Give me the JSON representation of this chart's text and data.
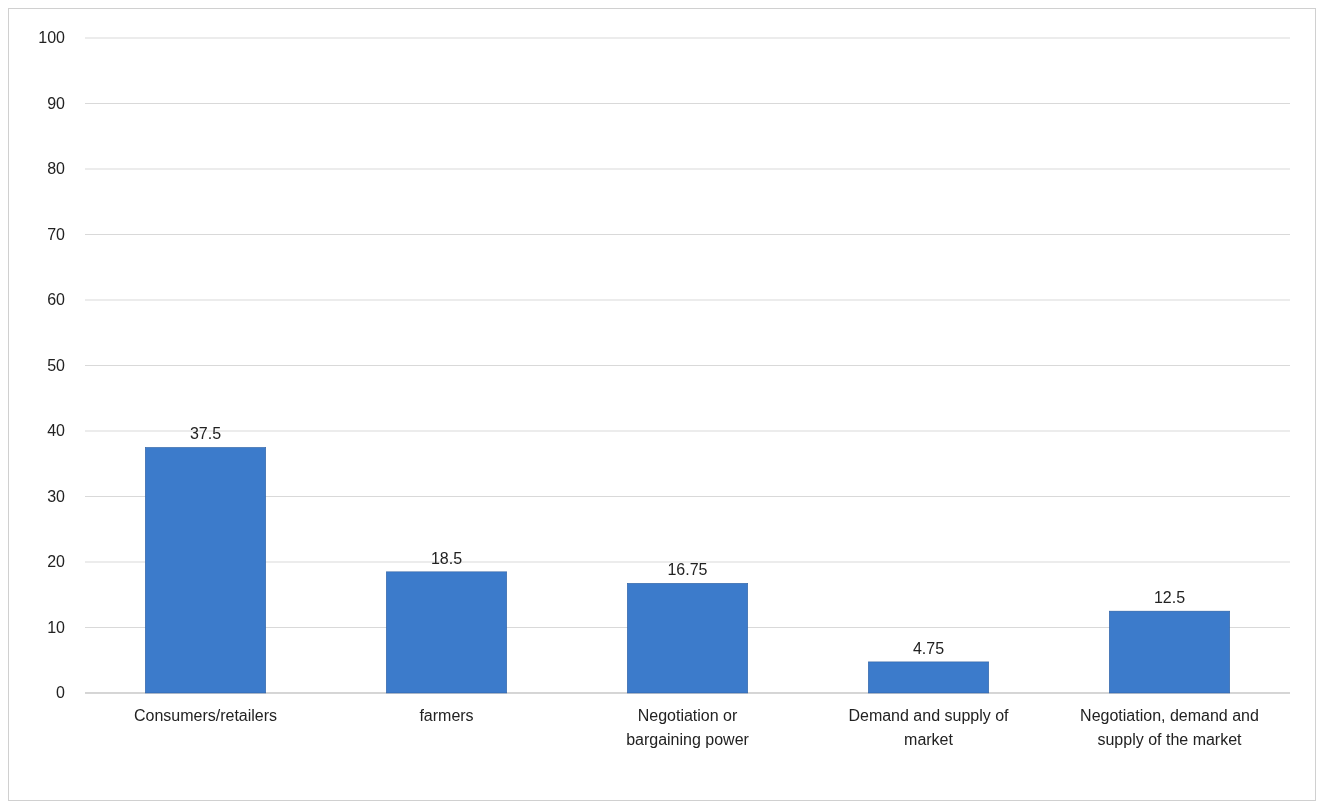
{
  "chart_data": {
    "type": "bar",
    "categories": [
      "Consumers/retailers",
      "farmers",
      "Negotiation or bargaining power",
      "Demand and supply of market",
      "Negotiation, demand and supply of the market"
    ],
    "values": [
      37.5,
      18.5,
      16.75,
      4.75,
      12.5
    ],
    "color": "#3c7bcb",
    "ylim": [
      0,
      100
    ],
    "yticks": [
      0,
      10,
      20,
      30,
      40,
      50,
      60,
      70,
      80,
      90,
      100
    ],
    "grid": "y",
    "data_labels": true
  }
}
